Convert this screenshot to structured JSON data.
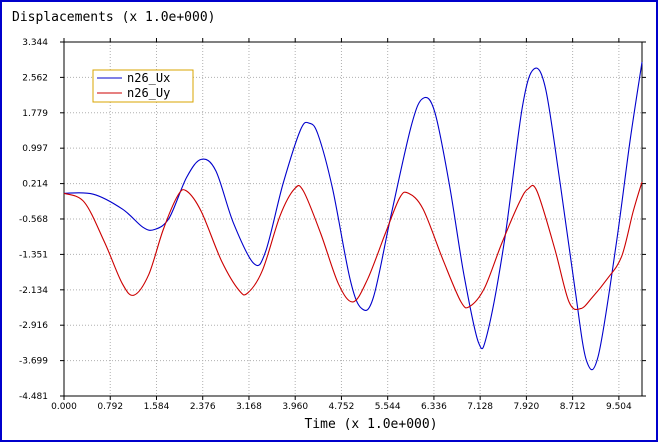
{
  "chart_data": {
    "type": "line",
    "title": "Displacements   (x 1.0e+000)",
    "xlabel": "Time (x 1.0e+000)",
    "ylabel": "",
    "xlim": [
      0.0,
      9.9
    ],
    "ylim": [
      -4.481,
      3.344
    ],
    "xticks": [
      "0.000",
      "0.792",
      "1.584",
      "2.376",
      "3.168",
      "3.960",
      "4.752",
      "5.544",
      "6.336",
      "7.128",
      "7.920",
      "8.712",
      "9.504"
    ],
    "yticks": [
      "3.344",
      "2.562",
      "1.779",
      "0.997",
      "0.214",
      "-0.568",
      "-1.351",
      "-2.134",
      "-2.916",
      "-3.699",
      "-4.481"
    ],
    "grid": true,
    "legend_position": "top-left",
    "series": [
      {
        "name": "n26_Ux",
        "color": "#0000cc",
        "points": [
          [
            0.0,
            0.0
          ],
          [
            0.5,
            -0.02
          ],
          [
            1.0,
            -0.35
          ],
          [
            1.35,
            -0.75
          ],
          [
            1.55,
            -0.8
          ],
          [
            1.8,
            -0.55
          ],
          [
            2.1,
            0.35
          ],
          [
            2.35,
            0.75
          ],
          [
            2.6,
            0.5
          ],
          [
            2.9,
            -0.65
          ],
          [
            3.25,
            -1.55
          ],
          [
            3.45,
            -1.3
          ],
          [
            3.75,
            0.2
          ],
          [
            4.05,
            1.4
          ],
          [
            4.2,
            1.55
          ],
          [
            4.35,
            1.3
          ],
          [
            4.6,
            0.1
          ],
          [
            4.9,
            -1.9
          ],
          [
            5.1,
            -2.55
          ],
          [
            5.3,
            -2.3
          ],
          [
            5.6,
            -0.5
          ],
          [
            5.95,
            1.5
          ],
          [
            6.15,
            2.1
          ],
          [
            6.35,
            1.8
          ],
          [
            6.6,
            0.2
          ],
          [
            6.85,
            -1.8
          ],
          [
            7.1,
            -3.3
          ],
          [
            7.25,
            -3.1
          ],
          [
            7.55,
            -1.0
          ],
          [
            7.85,
            1.9
          ],
          [
            8.05,
            2.75
          ],
          [
            8.25,
            2.3
          ],
          [
            8.5,
            0.2
          ],
          [
            8.75,
            -2.1
          ],
          [
            8.95,
            -3.7
          ],
          [
            9.15,
            -3.6
          ],
          [
            9.45,
            -1.2
          ],
          [
            9.7,
            1.2
          ],
          [
            9.9,
            2.9
          ]
        ]
      },
      {
        "name": "n26_Uy",
        "color": "#cc0000",
        "points": [
          [
            0.0,
            0.0
          ],
          [
            0.35,
            -0.2
          ],
          [
            0.7,
            -1.1
          ],
          [
            1.0,
            -2.0
          ],
          [
            1.2,
            -2.25
          ],
          [
            1.45,
            -1.8
          ],
          [
            1.7,
            -0.8
          ],
          [
            1.95,
            -0.05
          ],
          [
            2.1,
            0.05
          ],
          [
            2.35,
            -0.4
          ],
          [
            2.7,
            -1.5
          ],
          [
            3.0,
            -2.15
          ],
          [
            3.15,
            -2.2
          ],
          [
            3.4,
            -1.7
          ],
          [
            3.7,
            -0.5
          ],
          [
            3.95,
            0.1
          ],
          [
            4.1,
            0.05
          ],
          [
            4.4,
            -0.9
          ],
          [
            4.7,
            -2.0
          ],
          [
            4.95,
            -2.4
          ],
          [
            5.2,
            -1.9
          ],
          [
            5.5,
            -0.9
          ],
          [
            5.75,
            -0.1
          ],
          [
            5.9,
            0.0
          ],
          [
            6.15,
            -0.35
          ],
          [
            6.5,
            -1.5
          ],
          [
            6.8,
            -2.4
          ],
          [
            6.95,
            -2.5
          ],
          [
            7.2,
            -2.1
          ],
          [
            7.5,
            -1.1
          ],
          [
            7.8,
            -0.2
          ],
          [
            7.95,
            0.1
          ],
          [
            8.1,
            0.05
          ],
          [
            8.4,
            -1.2
          ],
          [
            8.65,
            -2.4
          ],
          [
            8.85,
            -2.55
          ],
          [
            9.05,
            -2.3
          ],
          [
            9.3,
            -1.9
          ],
          [
            9.55,
            -1.4
          ],
          [
            9.75,
            -0.4
          ],
          [
            9.9,
            0.25
          ]
        ]
      }
    ]
  }
}
